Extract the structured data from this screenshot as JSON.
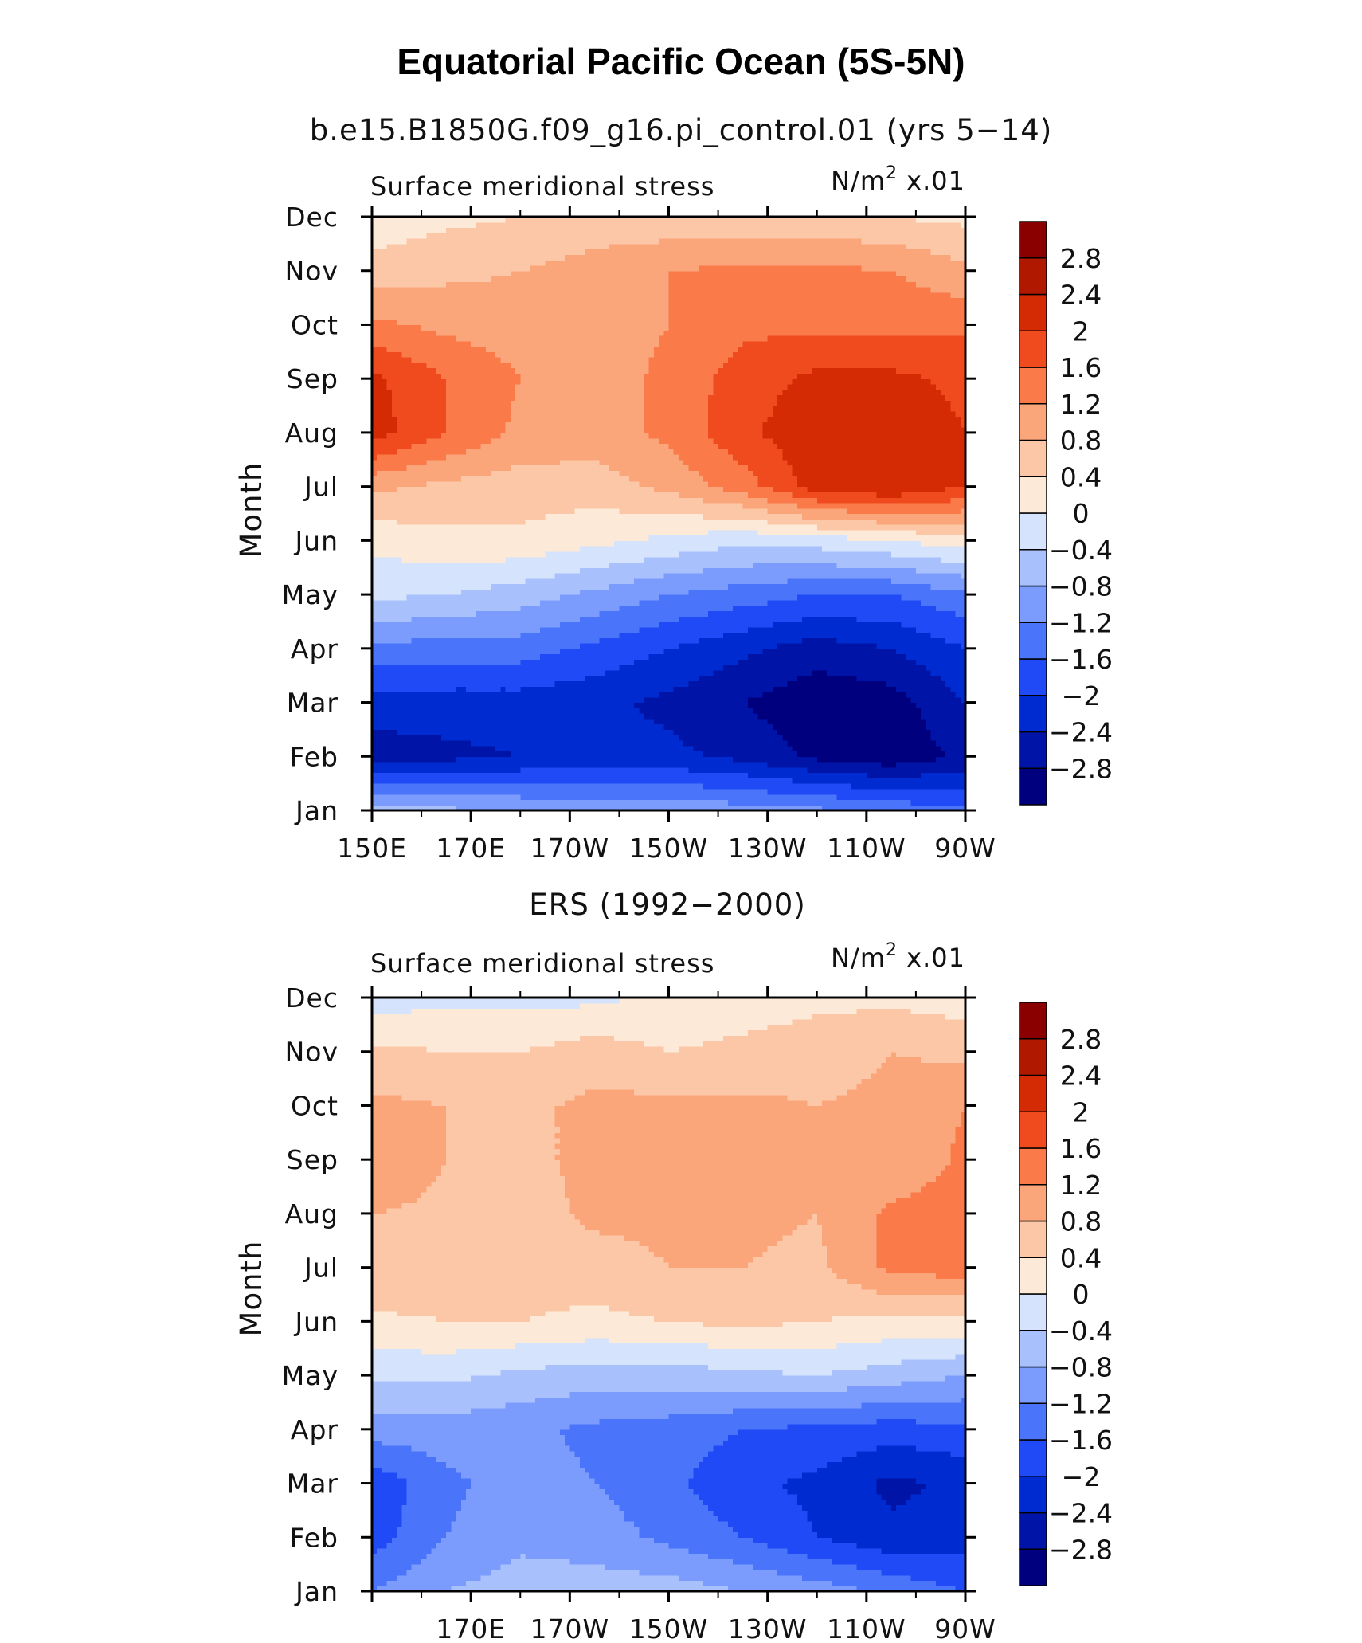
{
  "figure": {
    "title": "Equatorial Pacific Ocean (5S-5N)",
    "colors": [
      "#00007f",
      "#0015a8",
      "#002bd1",
      "#1f4af5",
      "#4a75fa",
      "#7b9cfc",
      "#a8c0fc",
      "#d5e3fd",
      "#fde9d8",
      "#fcc7a6",
      "#fba57a",
      "#fa7a4a",
      "#f04a1f",
      "#d42b05",
      "#b01800",
      "#8a0000"
    ],
    "colorbar_labels": [
      "2.8",
      "2.4",
      "2",
      "1.6",
      "1.2",
      "0.8",
      "0.4",
      "0",
      "−0.4",
      "−0.8",
      "−1.2",
      "−1.6",
      "−2",
      "−2.4",
      "−2.8"
    ]
  },
  "chart_data": [
    {
      "type": "heatmap",
      "title": "b.e15.B1850G.f09_g16.pi_control.01 (yrs 5−14)",
      "left_label": "Surface meridional stress",
      "right_label": "N/m",
      "units_sup": "2",
      "units_scale": " x.01",
      "ylabel": "Month",
      "x_tick_labels": [
        "150E",
        "170E",
        "170W",
        "150W",
        "130W",
        "110W",
        "90W"
      ],
      "x_tick_values": [
        150,
        170,
        190,
        210,
        230,
        250,
        270
      ],
      "xlim": [
        150,
        270
      ],
      "y_tick_labels": [
        "Jan",
        "Feb",
        "Mar",
        "Apr",
        "May",
        "Jun",
        "Jul",
        "Aug",
        "Sep",
        "Oct",
        "Nov",
        "Dec"
      ],
      "ylim": [
        1,
        12
      ],
      "levels": [
        -2.8,
        -2.4,
        -2,
        -1.6,
        -1.2,
        -0.8,
        -0.4,
        0,
        0.4,
        0.8,
        1.2,
        1.6,
        2,
        2.4,
        2.8
      ],
      "x": [
        150,
        165,
        180,
        195,
        210,
        225,
        240,
        255,
        270
      ],
      "y": [
        1,
        2,
        3,
        4,
        5,
        6,
        7,
        8,
        9,
        10,
        11,
        12
      ],
      "z": [
        [
          -0.6,
          -0.7,
          -0.8,
          -0.9,
          -0.9,
          -1.0,
          -1.1,
          -1.3,
          -1.5
        ],
        [
          -2.6,
          -2.5,
          -2.4,
          -2.3,
          -2.3,
          -2.5,
          -2.9,
          -3.1,
          -2.7
        ],
        [
          -2.2,
          -2.2,
          -2.2,
          -2.3,
          -2.5,
          -2.8,
          -3.1,
          -3.0,
          -2.4
        ],
        [
          -1.3,
          -1.4,
          -1.4,
          -1.7,
          -2.0,
          -2.3,
          -2.6,
          -2.4,
          -2.0
        ],
        [
          -0.3,
          -0.4,
          -0.6,
          -0.9,
          -1.2,
          -1.4,
          -1.6,
          -1.6,
          -1.3
        ],
        [
          0.1,
          0.3,
          0.3,
          0.1,
          -0.1,
          -0.3,
          -0.2,
          0.0,
          0.2
        ],
        [
          0.9,
          0.7,
          0.6,
          0.6,
          0.9,
          1.4,
          2.2,
          2.4,
          2.0
        ],
        [
          2.2,
          1.6,
          1.1,
          1.0,
          1.3,
          1.9,
          2.3,
          2.3,
          2.0
        ],
        [
          2.1,
          1.6,
          1.2,
          1.0,
          1.3,
          1.8,
          2.1,
          2.1,
          1.9
        ],
        [
          1.3,
          1.1,
          1.0,
          1.0,
          1.2,
          1.5,
          1.5,
          1.5,
          1.5
        ],
        [
          0.6,
          0.7,
          0.8,
          1.0,
          1.2,
          1.3,
          1.3,
          1.2,
          0.9
        ],
        [
          0.1,
          0.3,
          0.4,
          0.5,
          0.5,
          0.5,
          0.5,
          0.4,
          0.3
        ]
      ]
    },
    {
      "type": "heatmap",
      "title": "ERS (1992−2000)",
      "left_label": "Surface meridional stress",
      "right_label": "N/m",
      "units_sup": "2",
      "units_scale": " x.01",
      "ylabel": "Month",
      "x_tick_labels": [
        "170E",
        "170W",
        "150W",
        "130W",
        "110W",
        "90W"
      ],
      "x_tick_values": [
        170,
        190,
        210,
        230,
        250,
        270
      ],
      "xlim": [
        150,
        270
      ],
      "y_tick_labels": [
        "Jan",
        "Feb",
        "Mar",
        "Apr",
        "May",
        "Jun",
        "Jul",
        "Aug",
        "Sep",
        "Oct",
        "Nov",
        "Dec"
      ],
      "ylim": [
        1,
        12
      ],
      "levels": [
        -2.8,
        -2.4,
        -2,
        -1.6,
        -1.2,
        -0.8,
        -0.4,
        0,
        0.4,
        0.8,
        1.2,
        1.6,
        2,
        2.4,
        2.8
      ],
      "x": [
        150,
        165,
        180,
        195,
        210,
        225,
        240,
        255,
        270
      ],
      "y": [
        1,
        2,
        3,
        4,
        5,
        6,
        7,
        8,
        9,
        10,
        11,
        12
      ],
      "z": [
        [
          -1.2,
          -0.8,
          -0.6,
          -0.6,
          -0.6,
          -0.8,
          -1.0,
          -1.3,
          -1.6
        ],
        [
          -1.8,
          -1.2,
          -0.9,
          -1.0,
          -1.3,
          -1.6,
          -2.0,
          -2.3,
          -2.2
        ],
        [
          -1.9,
          -1.3,
          -1.0,
          -1.2,
          -1.5,
          -1.9,
          -2.1,
          -2.5,
          -2.3
        ],
        [
          -1.0,
          -1.0,
          -1.1,
          -1.3,
          -1.4,
          -1.6,
          -1.7,
          -1.8,
          -1.7
        ],
        [
          -0.3,
          -0.3,
          -0.5,
          -0.6,
          -0.6,
          -0.5,
          -0.4,
          -0.6,
          -0.8
        ],
        [
          0.3,
          0.4,
          0.4,
          0.3,
          0.4,
          0.5,
          0.4,
          0.3,
          0.3
        ],
        [
          0.8,
          0.7,
          0.6,
          0.6,
          0.8,
          0.8,
          0.7,
          1.3,
          1.4
        ],
        [
          0.8,
          0.7,
          0.6,
          0.9,
          0.9,
          0.9,
          0.8,
          1.3,
          1.5
        ],
        [
          1.2,
          0.8,
          0.7,
          0.9,
          0.9,
          0.9,
          0.8,
          0.8,
          1.3
        ],
        [
          0.9,
          0.8,
          0.7,
          0.9,
          0.9,
          0.9,
          0.8,
          0.9,
          1.2
        ],
        [
          0.5,
          0.4,
          0.4,
          0.6,
          0.4,
          0.5,
          0.6,
          0.8,
          0.7
        ],
        [
          -0.2,
          -0.1,
          -0.1,
          -0.1,
          0.1,
          0.2,
          0.3,
          0.3,
          0.2
        ]
      ]
    }
  ]
}
